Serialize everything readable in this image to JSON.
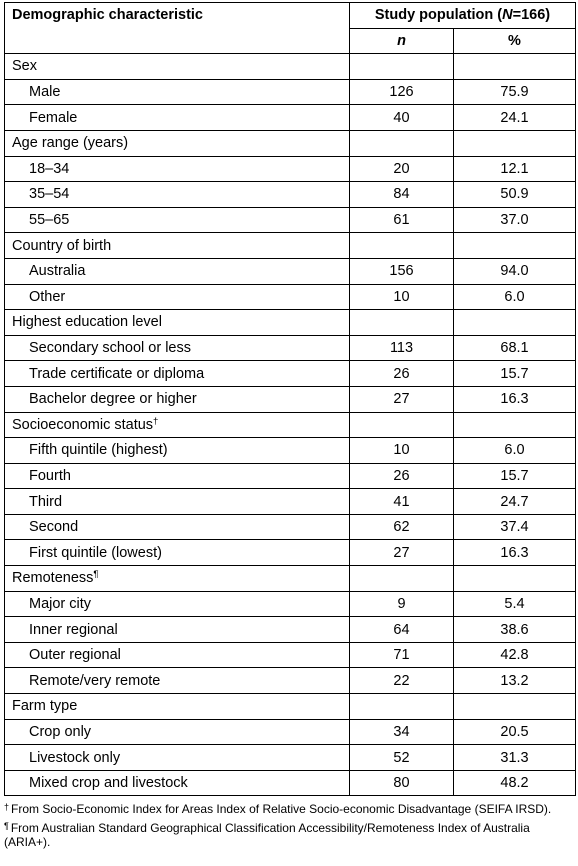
{
  "header": {
    "col1": "Demographic characteristic",
    "study_prefix": "Study population (",
    "study_N": "N",
    "study_suffix": "=166)",
    "n_label": "n",
    "pct_label": "%"
  },
  "groups": [
    {
      "label": "Sex",
      "sup": "",
      "rows": [
        {
          "label": "Male",
          "n": "126",
          "pct": "75.9"
        },
        {
          "label": "Female",
          "n": "40",
          "pct": "24.1"
        }
      ]
    },
    {
      "label": "Age range (years)",
      "sup": "",
      "rows": [
        {
          "label": "18–34",
          "n": "20",
          "pct": "12.1"
        },
        {
          "label": "35–54",
          "n": "84",
          "pct": "50.9"
        },
        {
          "label": "55–65",
          "n": "61",
          "pct": "37.0"
        }
      ]
    },
    {
      "label": "Country of birth",
      "sup": "",
      "rows": [
        {
          "label": "Australia",
          "n": "156",
          "pct": "94.0"
        },
        {
          "label": "Other",
          "n": "10",
          "pct": "6.0"
        }
      ]
    },
    {
      "label": "Highest education level",
      "sup": "",
      "rows": [
        {
          "label": "Secondary school or less",
          "n": "113",
          "pct": "68.1"
        },
        {
          "label": "Trade certificate or diploma",
          "n": "26",
          "pct": "15.7"
        },
        {
          "label": "Bachelor degree or higher",
          "n": "27",
          "pct": "16.3"
        }
      ]
    },
    {
      "label": "Socioeconomic status",
      "sup": "†",
      "rows": [
        {
          "label": "Fifth quintile (highest)",
          "n": "10",
          "pct": "6.0"
        },
        {
          "label": "Fourth",
          "n": "26",
          "pct": "15.7"
        },
        {
          "label": "Third",
          "n": "41",
          "pct": "24.7"
        },
        {
          "label": "Second",
          "n": "62",
          "pct": "37.4"
        },
        {
          "label": "First quintile (lowest)",
          "n": "27",
          "pct": "16.3"
        }
      ]
    },
    {
      "label": "Remoteness",
      "sup": "¶",
      "rows": [
        {
          "label": "Major city",
          "n": "9",
          "pct": "5.4"
        },
        {
          "label": "Inner regional",
          "n": "64",
          "pct": "38.6"
        },
        {
          "label": "Outer regional",
          "n": "71",
          "pct": "42.8"
        },
        {
          "label": "Remote/very remote",
          "n": "22",
          "pct": "13.2"
        }
      ]
    },
    {
      "label": "Farm type",
      "sup": "",
      "rows": [
        {
          "label": "Crop only",
          "n": "34",
          "pct": "20.5"
        },
        {
          "label": "Livestock only",
          "n": "52",
          "pct": "31.3"
        },
        {
          "label": "Mixed crop and livestock",
          "n": "80",
          "pct": "48.2"
        }
      ]
    }
  ],
  "footnotes": [
    {
      "mark": "†",
      "text": "From Socio-Economic Index for Areas Index of Relative Socio-economic Disadvantage (SEIFA IRSD)."
    },
    {
      "mark": "¶",
      "text": "From Australian Standard Geographical Classification Accessibility/Remoteness Index of Australia (ARIA+)."
    }
  ]
}
